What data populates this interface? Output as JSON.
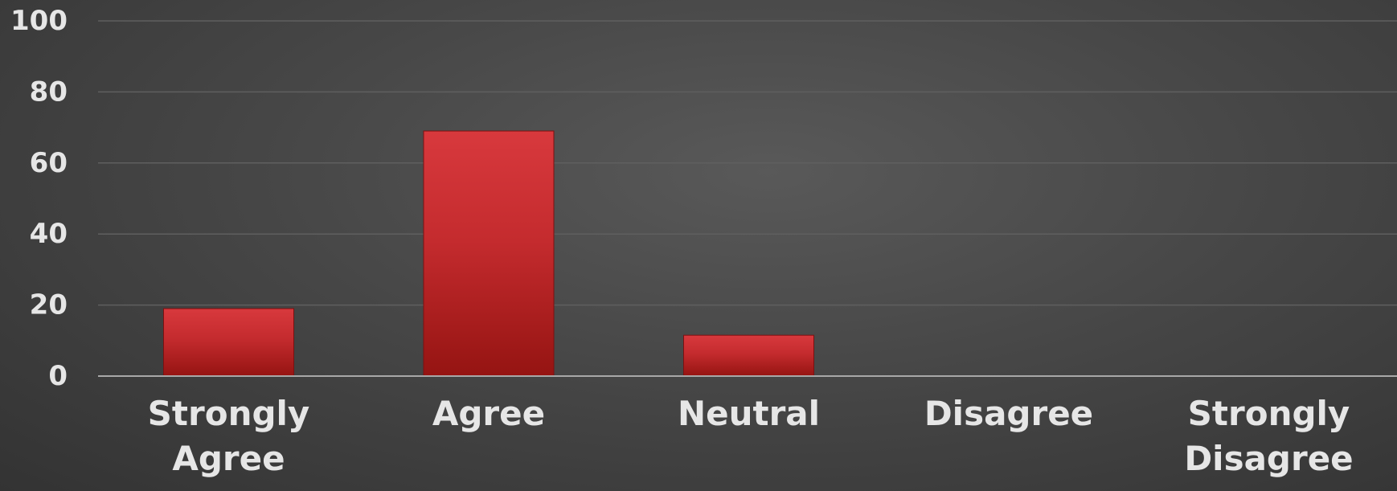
{
  "chart_data": {
    "type": "bar",
    "categories": [
      "Strongly Agree",
      "Agree",
      "Neutral",
      "Disagree",
      "Strongly Disagree"
    ],
    "category_lines": [
      [
        "Strongly",
        "Agree"
      ],
      [
        "Agree"
      ],
      [
        "Neutral"
      ],
      [
        "Disagree"
      ],
      [
        "Strongly",
        "Disagree"
      ]
    ],
    "values": [
      19,
      69,
      11.5,
      0,
      0
    ],
    "ylim": [
      0,
      100
    ],
    "yticks": [
      0,
      20,
      40,
      60,
      80,
      100
    ],
    "title": "",
    "xlabel": "",
    "ylabel": "",
    "grid": true,
    "legend": "none",
    "colors": {
      "bar_top": "#d8393d",
      "bar_bottom": "#951412",
      "gridline": "#5f5f5f",
      "axis_line": "#a8a8a8",
      "text": "#e6e6e6"
    }
  }
}
